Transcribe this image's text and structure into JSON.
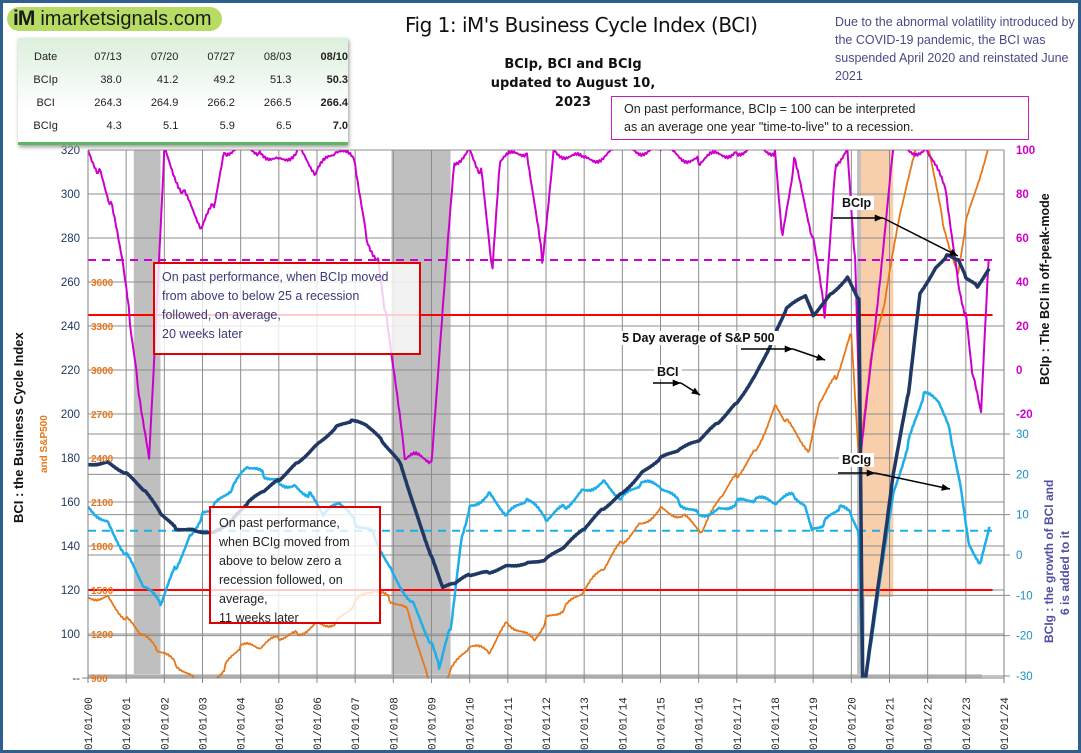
{
  "header": {
    "logo_mark": "iM",
    "logo_text": "imarketsignals.com",
    "title": "Fig 1:  iM's Business Cycle Index (BCI)",
    "subtitle_line1": "BCIp, BCI and BCIg",
    "subtitle_line2": "updated to August 10, 2023",
    "covid_note": "Due to the abnormal volatility introduced by the COVID-19 pandemic, the BCI was suspended April 2020 and reinstated June 2021",
    "ttl_note_line1": "On past performance, BCIp = 100  can be interpreted",
    "ttl_note_line2": "as an average one year \"time-to-live\" to a recession."
  },
  "summary_table": {
    "header": [
      "Date",
      "07/13",
      "07/20",
      "07/27",
      "08/03",
      "08/10"
    ],
    "rows": [
      {
        "label": "BCIp",
        "values": [
          "38.0",
          "41.2",
          "49.2",
          "51.3",
          "50.3"
        ]
      },
      {
        "label": "BCI",
        "values": [
          "264.3",
          "264.9",
          "266.2",
          "266.5",
          "266.4"
        ]
      },
      {
        "label": "BCIg",
        "values": [
          "4.3",
          "5.1",
          "5.9",
          "6.5",
          "7.0"
        ]
      }
    ]
  },
  "annotations": {
    "bcip_box": [
      "On past performance,  when BCIp moved",
      "from above to below 25 a recession",
      "followed, on average,",
      "20 weeks later"
    ],
    "bcig_box": [
      "On past performance,",
      "when BCIg moved from",
      "above to below zero a",
      "recession followed, on",
      "average,",
      "11 weeks later"
    ],
    "sp500_label": "5 Day average of  S&P 500",
    "bci_label": "BCI",
    "bcip_label": "BCIp",
    "bcig_label": "BCIg"
  },
  "colors": {
    "frame": "#2f5f8f",
    "bci": "#1f3864",
    "bcip": "#cc00cc",
    "bcig": "#1eaeea",
    "sp500": "#e8771a",
    "threshold": "#ff0000",
    "recession": "#bfbfbf",
    "covid_suspension": "#f9cfab",
    "grid": "#8c8c8c"
  },
  "chart_data": {
    "type": "line",
    "title": "Fig 1:  iM's Business Cycle Index (BCI)",
    "x_tick_labels": [
      "01/01/00",
      "01/01/01",
      "01/01/02",
      "01/01/03",
      "01/01/04",
      "01/01/05",
      "01/01/06",
      "01/01/07",
      "01/01/08",
      "01/01/09",
      "01/01/10",
      "01/01/11",
      "01/01/12",
      "01/01/13",
      "01/01/14",
      "01/01/15",
      "01/01/16",
      "01/01/17",
      "01/01/18",
      "01/01/19",
      "01/01/20",
      "01/01/21",
      "01/01/22",
      "01/01/23",
      "01/01/24"
    ],
    "xlim": [
      2000,
      2024
    ],
    "axes": {
      "left": {
        "label": "BCI : the Business  Cycle  Index",
        "ticks": [
          100,
          120,
          140,
          160,
          180,
          200,
          220,
          240,
          260,
          280,
          300,
          320
        ],
        "bottom_tick_label": "--",
        "ylim": [
          80,
          320
        ]
      },
      "left_secondary": {
        "label": "and   S&P500",
        "ticks": [
          900,
          1200,
          1500,
          1800,
          2100,
          2400,
          2700,
          3000,
          3300,
          3600
        ]
      },
      "right_top": {
        "label": "BCIp :  The BCI in off-peak-mode",
        "ticks": [
          100,
          80,
          60,
          40,
          20,
          0,
          -20
        ],
        "ylim": [
          -20,
          100
        ]
      },
      "right_bottom": {
        "label_line1": "BCIg :  the growth of BCI and",
        "label_line2": "6 is added to it",
        "ticks": [
          30,
          20,
          10,
          0,
          -10,
          -20,
          -30
        ],
        "ylim": [
          -30,
          30
        ]
      }
    },
    "reference_lines": [
      {
        "name": "BCI 245",
        "axis": "left",
        "value": 245,
        "style": "solid",
        "color": "#ff0000"
      },
      {
        "name": "BCI 120",
        "axis": "left",
        "value": 120,
        "style": "solid",
        "color": "#ff0000"
      },
      {
        "name": "BCIp 50",
        "axis": "right_top",
        "value": 50,
        "style": "dashed",
        "color": "#cc00cc"
      },
      {
        "name": "BCIg 6",
        "axis": "right_bottom",
        "value": 6,
        "style": "dashed",
        "color": "#1eaeea"
      }
    ],
    "shaded_regions": [
      {
        "name": "recession 2001",
        "from": 2001.2,
        "to": 2001.9,
        "color": "#bfbfbf"
      },
      {
        "name": "recession 2008-09",
        "from": 2007.95,
        "to": 2009.5,
        "color": "#bfbfbf"
      },
      {
        "name": "recession 2020",
        "from": 2020.15,
        "to": 2020.35,
        "color": "#bfbfbf"
      },
      {
        "name": "BCI suspended",
        "from": 2020.25,
        "to": 2021.1,
        "color": "#f9cfab"
      }
    ],
    "series": [
      {
        "name": "BCI",
        "axis": "left",
        "points": [
          [
            2000.0,
            177
          ],
          [
            2000.5,
            178
          ],
          [
            2001.0,
            173
          ],
          [
            2001.5,
            165
          ],
          [
            2001.9,
            155
          ],
          [
            2002.3,
            148
          ],
          [
            2002.8,
            147
          ],
          [
            2003.3,
            146
          ],
          [
            2003.8,
            152
          ],
          [
            2004.2,
            160
          ],
          [
            2004.6,
            165
          ],
          [
            2005.0,
            170
          ],
          [
            2005.5,
            178
          ],
          [
            2006.0,
            186
          ],
          [
            2006.5,
            194
          ],
          [
            2006.9,
            197
          ],
          [
            2007.3,
            195
          ],
          [
            2007.7,
            188
          ],
          [
            2008.2,
            177
          ],
          [
            2008.6,
            155
          ],
          [
            2009.0,
            135
          ],
          [
            2009.3,
            121
          ],
          [
            2009.6,
            123
          ],
          [
            2010.0,
            127
          ],
          [
            2010.5,
            128
          ],
          [
            2011.0,
            131
          ],
          [
            2011.5,
            132
          ],
          [
            2012.0,
            134
          ],
          [
            2012.5,
            140
          ],
          [
            2013.0,
            148
          ],
          [
            2013.5,
            157
          ],
          [
            2014.0,
            164
          ],
          [
            2014.5,
            173
          ],
          [
            2015.0,
            180
          ],
          [
            2015.5,
            184
          ],
          [
            2016.0,
            188
          ],
          [
            2016.5,
            196
          ],
          [
            2017.0,
            205
          ],
          [
            2017.5,
            218
          ],
          [
            2017.9,
            232
          ],
          [
            2018.3,
            248
          ],
          [
            2018.8,
            254
          ],
          [
            2019.0,
            245
          ],
          [
            2019.5,
            255
          ],
          [
            2019.9,
            262
          ],
          [
            2020.2,
            252
          ],
          [
            2020.3,
            70
          ],
          [
            2021.1,
            173
          ],
          [
            2021.5,
            210
          ],
          [
            2021.8,
            255
          ],
          [
            2022.2,
            266
          ],
          [
            2022.5,
            272
          ],
          [
            2022.8,
            270
          ],
          [
            2023.0,
            262
          ],
          [
            2023.3,
            258
          ],
          [
            2023.62,
            266
          ]
        ]
      },
      {
        "name": "BCIp",
        "axis": "right_top",
        "points": [
          [
            2000.0,
            100
          ],
          [
            2000.3,
            90
          ],
          [
            2000.6,
            75
          ],
          [
            2000.9,
            50
          ],
          [
            2001.1,
            22
          ],
          [
            2001.3,
            -5
          ],
          [
            2001.6,
            -40
          ],
          [
            2002.0,
            100
          ],
          [
            2002.5,
            80
          ],
          [
            2003.0,
            65
          ],
          [
            2003.3,
            75
          ],
          [
            2003.6,
            100
          ],
          [
            2004.5,
            100
          ],
          [
            2005.0,
            95
          ],
          [
            2005.5,
            100
          ],
          [
            2006.0,
            90
          ],
          [
            2006.5,
            100
          ],
          [
            2007.0,
            95
          ],
          [
            2007.3,
            60
          ],
          [
            2007.6,
            50
          ],
          [
            2007.8,
            25
          ],
          [
            2008.0,
            0
          ],
          [
            2008.3,
            -40
          ],
          [
            2009.0,
            -40
          ],
          [
            2009.6,
            95
          ],
          [
            2010.0,
            100
          ],
          [
            2010.3,
            90
          ],
          [
            2010.6,
            45
          ],
          [
            2010.8,
            95
          ],
          [
            2011.5,
            100
          ],
          [
            2011.9,
            50
          ],
          [
            2012.2,
            100
          ],
          [
            2013.0,
            95
          ],
          [
            2014.0,
            100
          ],
          [
            2015.0,
            100
          ],
          [
            2016.0,
            95
          ],
          [
            2017.0,
            100
          ],
          [
            2018.0,
            100
          ],
          [
            2018.2,
            60
          ],
          [
            2018.5,
            95
          ],
          [
            2019.0,
            60
          ],
          [
            2019.3,
            25
          ],
          [
            2019.6,
            95
          ],
          [
            2019.9,
            100
          ],
          [
            2020.1,
            50
          ],
          [
            2020.25,
            -40
          ],
          [
            2021.1,
            100
          ],
          [
            2022.0,
            100
          ],
          [
            2022.5,
            80
          ],
          [
            2022.8,
            40
          ],
          [
            2023.0,
            25
          ],
          [
            2023.2,
            -5
          ],
          [
            2023.4,
            -20
          ],
          [
            2023.6,
            50
          ]
        ]
      },
      {
        "name": "BCIg",
        "axis": "right_bottom",
        "points": [
          [
            2000.0,
            12
          ],
          [
            2000.5,
            8
          ],
          [
            2001.0,
            0
          ],
          [
            2001.5,
            -8
          ],
          [
            2001.9,
            -12
          ],
          [
            2002.3,
            -3
          ],
          [
            2002.7,
            5
          ],
          [
            2003.0,
            10
          ],
          [
            2003.3,
            12
          ],
          [
            2003.8,
            17
          ],
          [
            2004.2,
            22
          ],
          [
            2004.6,
            20
          ],
          [
            2005.0,
            18
          ],
          [
            2005.4,
            17
          ],
          [
            2005.8,
            15
          ],
          [
            2006.2,
            10
          ],
          [
            2006.6,
            13
          ],
          [
            2007.0,
            8
          ],
          [
            2007.5,
            5
          ],
          [
            2008.0,
            -5
          ],
          [
            2008.5,
            -12
          ],
          [
            2009.0,
            -22
          ],
          [
            2009.2,
            -28
          ],
          [
            2009.5,
            -18
          ],
          [
            2009.8,
            5
          ],
          [
            2010.0,
            12
          ],
          [
            2010.5,
            15
          ],
          [
            2011.0,
            10
          ],
          [
            2011.5,
            14
          ],
          [
            2012.0,
            9
          ],
          [
            2012.5,
            12
          ],
          [
            2013.0,
            16
          ],
          [
            2013.5,
            18
          ],
          [
            2014.0,
            14
          ],
          [
            2014.5,
            18
          ],
          [
            2015.0,
            17
          ],
          [
            2015.5,
            13
          ],
          [
            2016.0,
            10
          ],
          [
            2016.5,
            11
          ],
          [
            2017.0,
            13
          ],
          [
            2017.5,
            14
          ],
          [
            2018.0,
            13
          ],
          [
            2018.5,
            15
          ],
          [
            2018.8,
            12
          ],
          [
            2019.0,
            6
          ],
          [
            2019.3,
            8
          ],
          [
            2019.7,
            12
          ],
          [
            2020.0,
            10
          ],
          [
            2020.2,
            5
          ],
          [
            2020.3,
            -35
          ],
          [
            2021.1,
            15
          ],
          [
            2021.5,
            28
          ],
          [
            2021.9,
            40
          ],
          [
            2022.3,
            38
          ],
          [
            2022.6,
            30
          ],
          [
            2022.9,
            15
          ],
          [
            2023.1,
            2
          ],
          [
            2023.4,
            -2
          ],
          [
            2023.62,
            7
          ]
        ]
      },
      {
        "name": "S&P 500 (5-day avg)",
        "axis": "left_secondary",
        "points": [
          [
            2000.0,
            1450
          ],
          [
            2000.5,
            1450
          ],
          [
            2001.0,
            1300
          ],
          [
            2001.4,
            1200
          ],
          [
            2001.8,
            1100
          ],
          [
            2002.3,
            1000
          ],
          [
            2002.8,
            880
          ],
          [
            2003.2,
            850
          ],
          [
            2003.6,
            980
          ],
          [
            2004.0,
            1120
          ],
          [
            2004.5,
            1110
          ],
          [
            2005.0,
            1180
          ],
          [
            2005.5,
            1200
          ],
          [
            2006.0,
            1270
          ],
          [
            2006.5,
            1270
          ],
          [
            2007.0,
            1420
          ],
          [
            2007.5,
            1500
          ],
          [
            2007.9,
            1440
          ],
          [
            2008.4,
            1350
          ],
          [
            2008.9,
            900
          ],
          [
            2009.2,
            780
          ],
          [
            2009.5,
            950
          ],
          [
            2010.0,
            1120
          ],
          [
            2010.5,
            1080
          ],
          [
            2011.0,
            1280
          ],
          [
            2011.7,
            1150
          ],
          [
            2012.0,
            1300
          ],
          [
            2012.5,
            1380
          ],
          [
            2013.0,
            1500
          ],
          [
            2013.5,
            1650
          ],
          [
            2014.0,
            1830
          ],
          [
            2014.5,
            1950
          ],
          [
            2015.0,
            2050
          ],
          [
            2015.6,
            2000
          ],
          [
            2016.1,
            1900
          ],
          [
            2016.6,
            2150
          ],
          [
            2017.0,
            2280
          ],
          [
            2017.5,
            2450
          ],
          [
            2018.0,
            2750
          ],
          [
            2018.3,
            2650
          ],
          [
            2018.9,
            2450
          ],
          [
            2019.2,
            2800
          ],
          [
            2019.6,
            2950
          ],
          [
            2020.0,
            3250
          ],
          [
            2020.2,
            2400
          ],
          [
            2020.5,
            3050
          ],
          [
            2020.9,
            3500
          ],
          [
            2021.3,
            4100
          ],
          [
            2021.9,
            4700
          ],
          [
            2022.4,
            4000
          ],
          [
            2022.8,
            3650
          ],
          [
            2023.0,
            4000
          ],
          [
            2023.62,
            4550
          ]
        ]
      }
    ]
  }
}
